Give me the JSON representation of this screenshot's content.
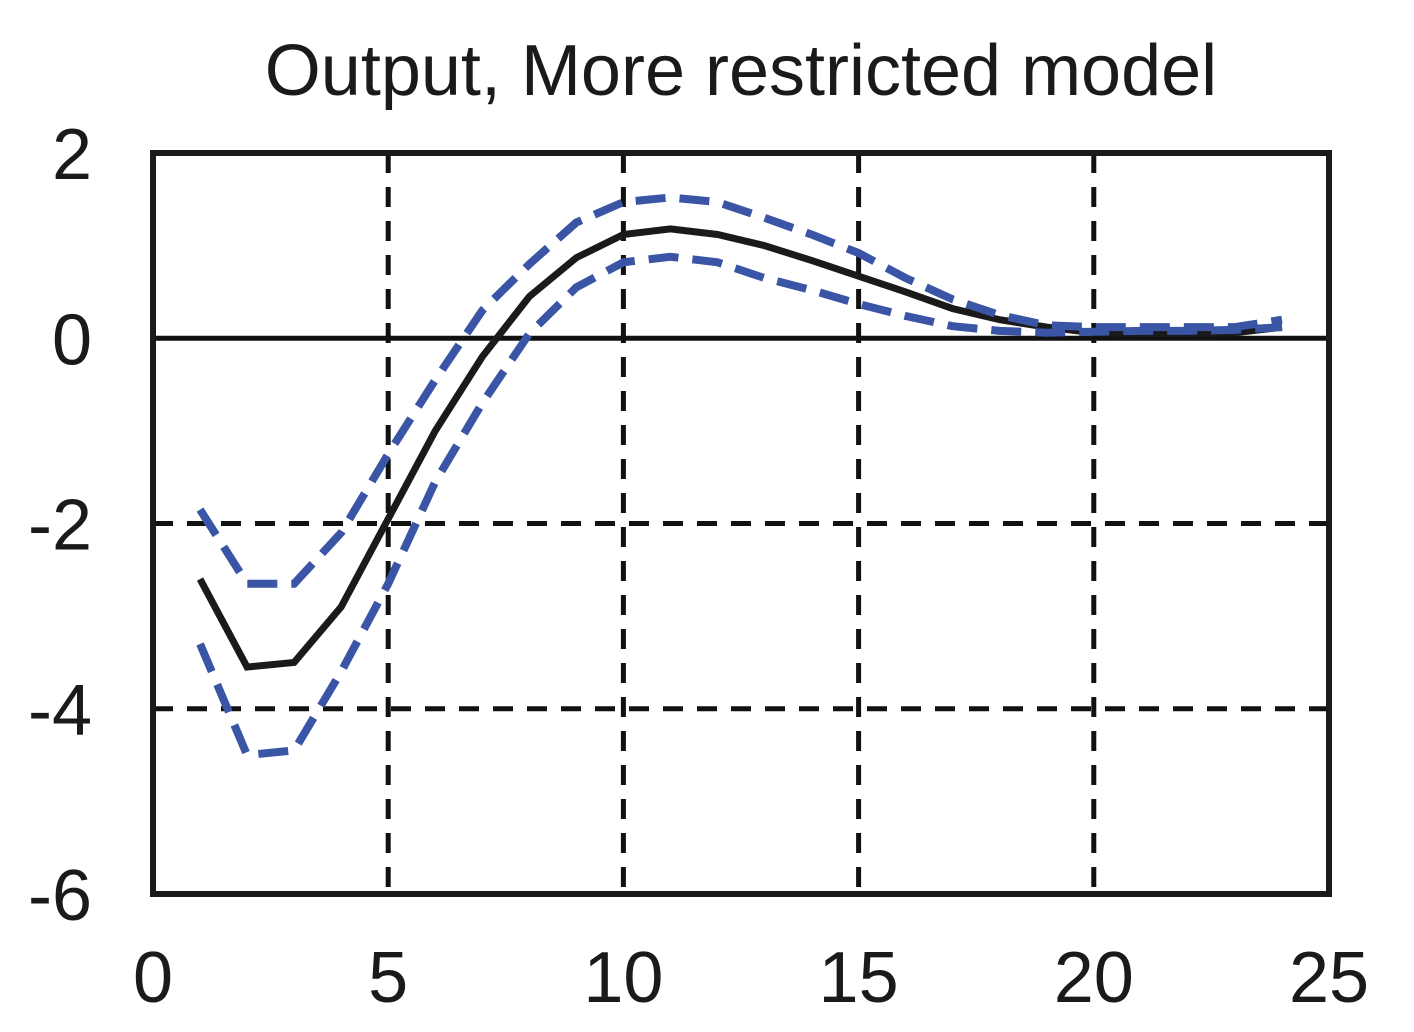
{
  "chart_data": {
    "type": "line",
    "title": "Output, More restricted model",
    "xlabel": "",
    "ylabel": "",
    "xlim": [
      0,
      25
    ],
    "ylim": [
      -6,
      2
    ],
    "xticks": [
      "0",
      "5",
      "10",
      "15",
      "20",
      "25"
    ],
    "yticks": [
      "2",
      "0",
      "-2",
      "-4",
      "-6"
    ],
    "grid": true,
    "x": [
      1,
      2,
      3,
      4,
      5,
      6,
      7,
      8,
      9,
      10,
      11,
      12,
      13,
      14,
      15,
      16,
      17,
      18,
      19,
      20,
      21,
      22,
      23,
      24
    ],
    "series": [
      {
        "style": "solid",
        "color": "#1a1a1a",
        "values": [
          -2.6,
          -3.55,
          -3.5,
          -2.9,
          -1.95,
          -1.0,
          -0.2,
          0.45,
          0.87,
          1.12,
          1.18,
          1.12,
          1.0,
          0.84,
          0.67,
          0.5,
          0.32,
          0.2,
          0.12,
          0.06,
          0.05,
          0.05,
          0.06,
          0.12
        ]
      },
      {
        "style": "dashed",
        "color": "#3a55a5",
        "values": [
          -1.85,
          -2.65,
          -2.65,
          -2.1,
          -1.25,
          -0.45,
          0.3,
          0.8,
          1.25,
          1.47,
          1.52,
          1.47,
          1.3,
          1.12,
          0.92,
          0.65,
          0.42,
          0.25,
          0.14,
          0.12,
          0.12,
          0.12,
          0.12,
          0.2
        ]
      },
      {
        "style": "dashed",
        "color": "#3a55a5",
        "values": [
          -3.3,
          -4.5,
          -4.45,
          -3.6,
          -2.65,
          -1.55,
          -0.7,
          0.05,
          0.55,
          0.82,
          0.88,
          0.82,
          0.65,
          0.52,
          0.37,
          0.24,
          0.13,
          0.08,
          0.06,
          0.07,
          0.08,
          0.08,
          0.09,
          0.12
        ]
      }
    ],
    "reference_line": 0
  }
}
